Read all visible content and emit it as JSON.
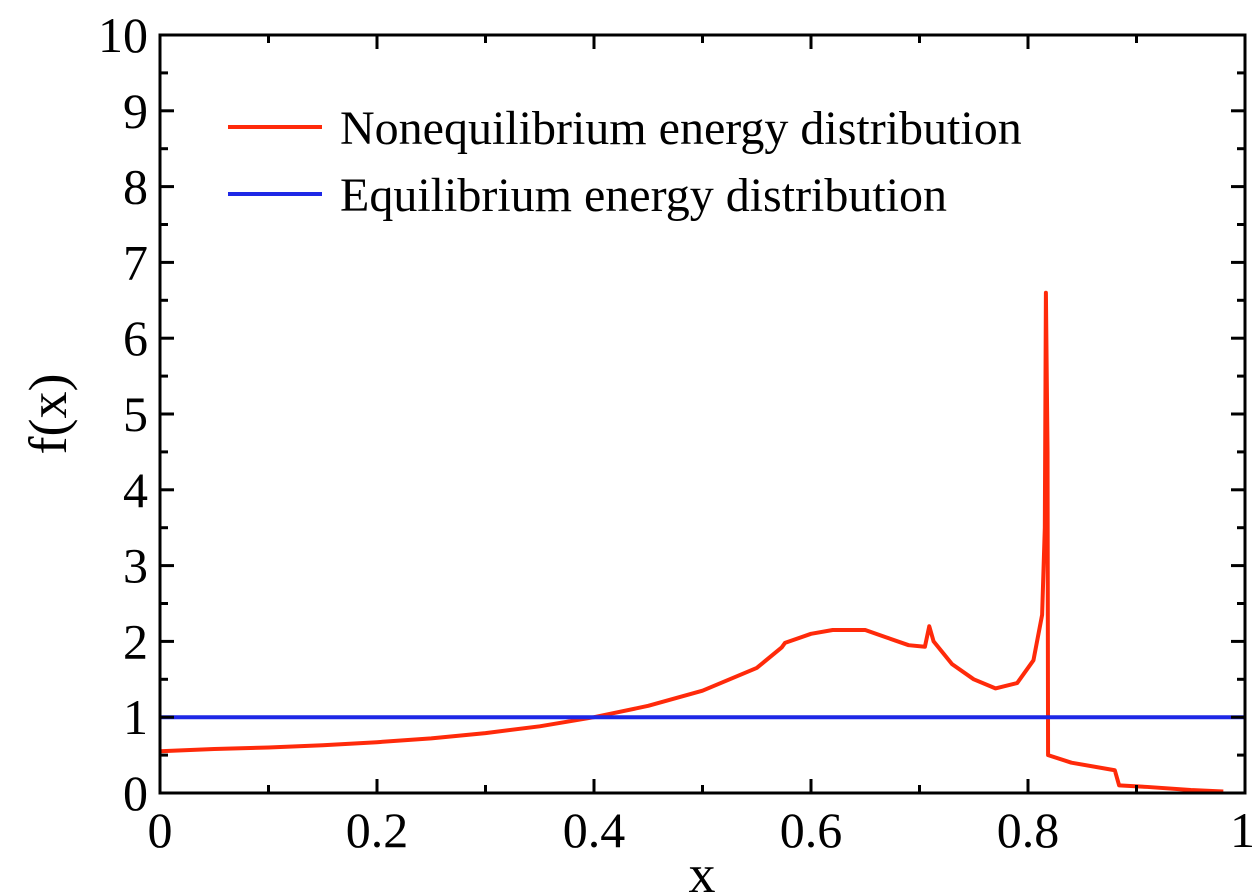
{
  "chart_data": {
    "type": "line",
    "title": "",
    "xlabel": "x",
    "ylabel": "f(x)",
    "xlim": [
      0,
      1
    ],
    "ylim": [
      0,
      10
    ],
    "x_ticks": [
      0,
      0.2,
      0.4,
      0.6,
      0.8,
      1
    ],
    "x_tick_labels": [
      "0",
      "0.2",
      "0.4",
      "0.6",
      "0.8",
      "1"
    ],
    "y_ticks": [
      0,
      1,
      2,
      3,
      4,
      5,
      6,
      7,
      8,
      9,
      10
    ],
    "y_tick_labels": [
      "0",
      "1",
      "2",
      "3",
      "4",
      "5",
      "6",
      "7",
      "8",
      "9",
      "10"
    ],
    "grid": false,
    "legend": {
      "placement": "top-left"
    },
    "series": [
      {
        "name": "Nonequilibrium energy distribution",
        "color": "#ff2a0a",
        "points": [
          [
            0.0,
            0.55
          ],
          [
            0.05,
            0.58
          ],
          [
            0.1,
            0.6
          ],
          [
            0.15,
            0.63
          ],
          [
            0.2,
            0.67
          ],
          [
            0.25,
            0.72
          ],
          [
            0.3,
            0.79
          ],
          [
            0.35,
            0.88
          ],
          [
            0.4,
            1.0
          ],
          [
            0.45,
            1.15
          ],
          [
            0.5,
            1.35
          ],
          [
            0.55,
            1.65
          ],
          [
            0.573,
            1.92
          ],
          [
            0.576,
            1.98
          ],
          [
            0.6,
            2.1
          ],
          [
            0.62,
            2.15
          ],
          [
            0.65,
            2.15
          ],
          [
            0.67,
            2.05
          ],
          [
            0.69,
            1.95
          ],
          [
            0.705,
            1.93
          ],
          [
            0.709,
            2.2
          ],
          [
            0.713,
            2.0
          ],
          [
            0.73,
            1.7
          ],
          [
            0.75,
            1.5
          ],
          [
            0.77,
            1.38
          ],
          [
            0.79,
            1.45
          ],
          [
            0.805,
            1.75
          ],
          [
            0.813,
            2.35
          ],
          [
            0.8155,
            3.5
          ],
          [
            0.8165,
            6.6
          ],
          [
            0.818,
            4.5
          ],
          [
            0.8185,
            0.5
          ],
          [
            0.84,
            0.4
          ],
          [
            0.88,
            0.3
          ],
          [
            0.884,
            0.1
          ],
          [
            0.91,
            0.08
          ],
          [
            0.95,
            0.04
          ],
          [
            0.98,
            0.02
          ]
        ]
      },
      {
        "name": "Equilibrium energy distribution",
        "color": "#1e28e6",
        "points": [
          [
            0,
            1
          ],
          [
            1,
            1
          ]
        ]
      }
    ]
  }
}
